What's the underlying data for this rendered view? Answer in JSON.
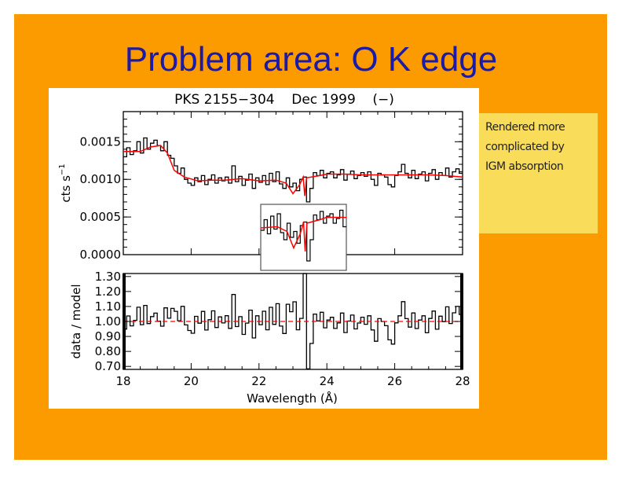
{
  "slide": {
    "title": "Problem area: O K edge",
    "note_lines": [
      "Rendered more",
      "complicated by",
      "IGM absorption"
    ],
    "colors": {
      "background": "#fb9b00",
      "title": "#1b1ba8",
      "note": "#f9dc5a",
      "model": "#ff0000",
      "data": "#000000"
    }
  },
  "chart_data": {
    "type": "line",
    "title": "PKS 2155−304    Dec 1999    (−)",
    "xlabel": "Wavelength (Å)",
    "xlim": [
      18,
      28
    ],
    "xticks": [
      "18",
      "20",
      "22",
      "24",
      "26",
      "28"
    ],
    "xtick_values": [
      18,
      20,
      22,
      24,
      26,
      28
    ],
    "upper_panel": {
      "ylabel": "cts s",
      "ylabel_sup": "−1",
      "ylim": [
        0,
        0.0019
      ],
      "yticks": [
        "0.0000",
        "0.0005",
        "0.0010",
        "0.0015"
      ],
      "ytick_values": [
        0,
        0.0005,
        0.001,
        0.0015
      ],
      "data_scale": 0.001,
      "data": {
        "name": "data",
        "x_start": 18.0,
        "x_step": 0.1,
        "values": [
          1.3,
          1.42,
          1.33,
          1.38,
          1.5,
          1.35,
          1.55,
          1.4,
          1.48,
          1.52,
          1.45,
          1.38,
          1.5,
          1.32,
          1.28,
          1.18,
          1.08,
          1.15,
          1.0,
          0.95,
          0.92,
          1.02,
          0.97,
          1.05,
          0.93,
          1.0,
          1.06,
          0.95,
          1.02,
          0.98,
          1.03,
          0.95,
          1.18,
          0.97,
          1.04,
          0.92,
          0.99,
          1.07,
          0.88,
          1.02,
          0.96,
          1.05,
          0.93,
          1.08,
          0.97,
          1.1,
          0.94,
          0.88,
          1.02,
          0.9,
          0.95,
          0.85,
          1.0,
          1.03,
          0.7,
          0.88,
          1.09,
          1.05,
          1.12,
          1.02,
          1.08,
          1.1,
          1.02,
          1.06,
          1.13,
          0.99,
          1.07,
          1.11,
          1.01,
          1.05,
          1.09,
          1.04,
          1.1,
          1.0,
          0.92,
          1.08,
          1.06,
          1.03,
          0.93,
          0.9,
          1.05,
          1.1,
          1.2,
          1.08,
          1.02,
          1.12,
          1.01,
          1.07,
          1.1,
          0.98,
          1.08,
          1.13,
          1.0,
          1.09,
          1.05,
          1.15,
          1.03,
          1.1,
          1.14,
          1.08
        ]
      },
      "model": {
        "name": "model",
        "x": [
          18.0,
          18.5,
          18.8,
          19.1,
          19.3,
          19.5,
          19.8,
          20.2,
          20.6,
          21.0,
          21.5,
          22.0,
          22.5,
          22.8,
          23.0,
          23.2,
          23.3,
          23.35,
          23.4,
          23.8,
          24.0,
          24.5,
          25.0,
          26.0,
          27.0,
          27.5,
          28.0
        ],
        "y": [
          1.37,
          1.37,
          1.43,
          1.45,
          1.35,
          1.12,
          1.03,
          0.98,
          0.99,
          0.99,
          1.01,
          0.98,
          0.99,
          0.95,
          0.81,
          0.93,
          1.03,
          0.78,
          1.02,
          1.05,
          1.07,
          1.07,
          1.06,
          1.06,
          1.06,
          1.05,
          1.03
        ]
      },
      "inset": {
        "xlim": [
          22.0,
          24.6
        ],
        "ylim": [
          0.62,
          1.18
        ]
      }
    },
    "lower_panel": {
      "ylabel": "data / model",
      "ylim": [
        0.68,
        1.32
      ],
      "yticks": [
        "0.70",
        "0.80",
        "0.90",
        "1.00",
        "1.10",
        "1.20",
        "1.30"
      ],
      "ytick_values": [
        0.7,
        0.8,
        0.9,
        1.0,
        1.1,
        1.2,
        1.3
      ],
      "reference": 1.0
    }
  }
}
